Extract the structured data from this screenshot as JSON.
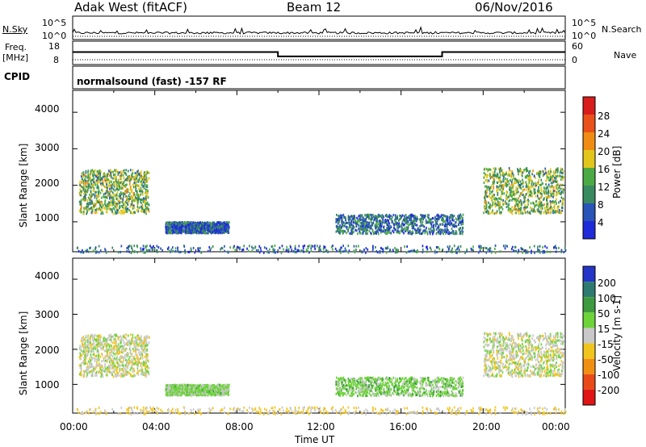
{
  "header": {
    "station": "Adak West (fitACF)",
    "beam": "Beam 12",
    "date": "06/Nov/2016"
  },
  "panels": {
    "nsky": {
      "left_label": "N.Sky",
      "tick_hi": "10^5",
      "tick_lo": "10^0",
      "right_label": "N.Search",
      "right_tick_hi": "10^5",
      "right_tick_lo": "10^0"
    },
    "freq": {
      "left_label_1": "Freq.",
      "left_label_2": "[MHz]",
      "tick_hi": "18",
      "tick_lo": "8",
      "right_label": "Nave",
      "right_tick_hi": "60",
      "right_tick_lo": "0"
    },
    "cpid": {
      "label": "CPID",
      "mode": "normalsound (fast) -157 RF"
    }
  },
  "axes": {
    "ylabel": "Slant Range [km]",
    "xlabel": "Time UT",
    "yticks": [
      "1000",
      "2000",
      "3000",
      "4000"
    ],
    "xticks": [
      "00:00",
      "04:00",
      "08:00",
      "12:00",
      "16:00",
      "20:00",
      "00:00"
    ]
  },
  "colorbars": {
    "power": {
      "label": "Power [dB]",
      "ticks": [
        "4",
        "8",
        "12",
        "16",
        "20",
        "24",
        "28"
      ],
      "colors": [
        "#1f2bd9",
        "#2a55b8",
        "#3a8a60",
        "#4caa44",
        "#e3c61c",
        "#f08c13",
        "#e8511a",
        "#d81d1d"
      ]
    },
    "velocity": {
      "label": "Velocity [m s-1]",
      "ticks": [
        "200",
        "100",
        "50",
        "15",
        "-15",
        "-50",
        "-100",
        "-200"
      ],
      "colors": [
        "#2535c8",
        "#2e7a70",
        "#3d9a3f",
        "#6dd43a",
        "#c9c9c9",
        "#f2c51e",
        "#f18f13",
        "#ea4a17",
        "#e01515"
      ]
    }
  },
  "chart_data": {
    "type": "heatmap",
    "x_range_hours": [
      0,
      24
    ],
    "y_range_km": [
      180,
      4600
    ],
    "nsky_mean": 8,
    "freq_mhz": {
      "segments": [
        {
          "start": 0,
          "end": 10,
          "value": 13.2
        },
        {
          "start": 10,
          "end": 18,
          "value": 10.8
        },
        {
          "start": 18,
          "end": 24,
          "value": 13.2
        }
      ]
    },
    "nave_mean": 8,
    "echo_regions": [
      {
        "t0": 0.3,
        "t1": 3.7,
        "r0": 1250,
        "r1": 2450,
        "power": 14,
        "velocity": 0
      },
      {
        "t0": 4.5,
        "t1": 7.6,
        "r0": 720,
        "r1": 1020,
        "power": 6,
        "velocity": 25
      },
      {
        "t0": 12.8,
        "t1": 19.0,
        "r0": 700,
        "r1": 1230,
        "power": 8,
        "velocity": 30
      },
      {
        "t0": 20.0,
        "t1": 23.9,
        "r0": 1250,
        "r1": 2500,
        "power": 14,
        "velocity": 0
      },
      {
        "t0": 0.0,
        "t1": 24.0,
        "r0": 180,
        "r1": 380,
        "power": 8,
        "velocity": -20
      }
    ]
  }
}
